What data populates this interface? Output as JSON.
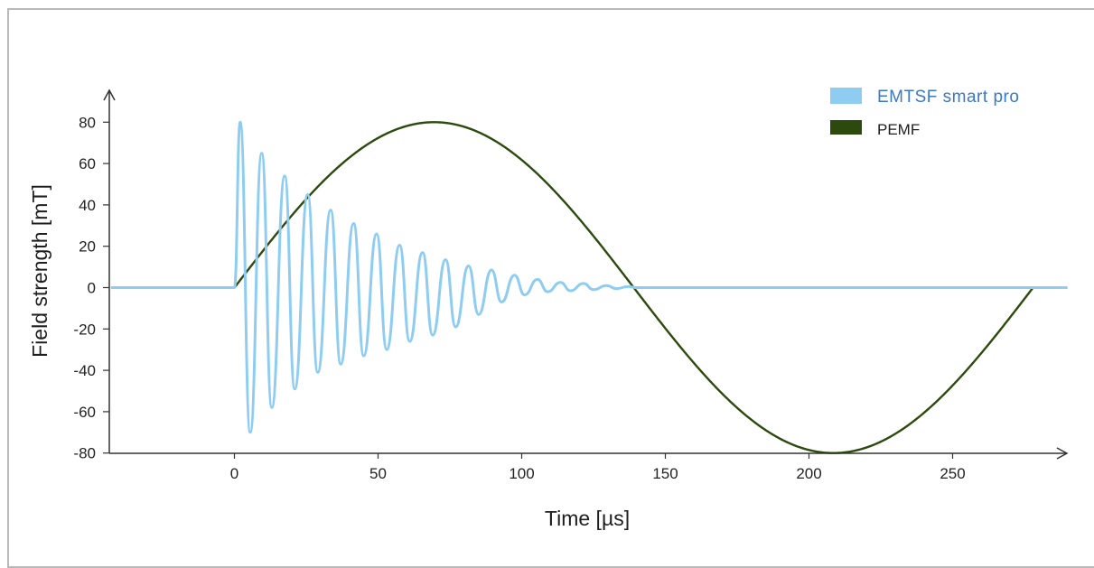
{
  "colors": {
    "emtsf": "#8ecdf1",
    "pemf": "#2d4a0e",
    "axis": "#333333",
    "legend_emtsf_text": "#3a78c8"
  },
  "chart_data": {
    "type": "line",
    "xlabel": "Time [µs]",
    "ylabel": "Field strength [mT]",
    "xlim": [
      -43,
      290
    ],
    "ylim": [
      -80,
      80
    ],
    "x_ticks": [
      0,
      50,
      100,
      150,
      200,
      250
    ],
    "y_ticks": [
      80,
      60,
      40,
      20,
      0,
      -20,
      -40,
      -60,
      -80
    ],
    "x_tick_labels": [
      "0",
      "50",
      "100",
      "150",
      "200",
      "250"
    ],
    "y_tick_labels": [
      "80",
      "60",
      "40",
      "20",
      "0",
      "-20",
      "-40",
      "-60",
      "-80"
    ],
    "grid": false,
    "legend_position": "top-right",
    "series": [
      {
        "name": "EMTSF smart pro",
        "shape": "damped oscillation",
        "x": [
          -43,
          0,
          2,
          5.5,
          9.5,
          13,
          17.5,
          21,
          25.5,
          29,
          33.5,
          37,
          41.5,
          45,
          49.5,
          53,
          57.5,
          61,
          65.5,
          69,
          73.5,
          77,
          81.5,
          85,
          89.5,
          93,
          97.5,
          101,
          105.5,
          109,
          113.5,
          117,
          121.5,
          125,
          129.5,
          133,
          137,
          140,
          290
        ],
        "values": [
          0,
          0,
          80,
          -70,
          65,
          -58,
          54,
          -49,
          45,
          -41,
          37.5,
          -37,
          31,
          -33,
          26,
          -30,
          20.5,
          -26,
          17,
          -23,
          13.5,
          -19,
          10.5,
          -13,
          8.5,
          -7,
          6,
          -3.5,
          4,
          -2,
          2.5,
          -1.5,
          2,
          -1,
          1,
          -0.5,
          0.5,
          0,
          0
        ]
      },
      {
        "name": "PEMF",
        "shape": "sine cycle",
        "x": [
          0,
          278
        ],
        "period": 278,
        "amplitude": 80,
        "onset_step": 2
      }
    ]
  }
}
